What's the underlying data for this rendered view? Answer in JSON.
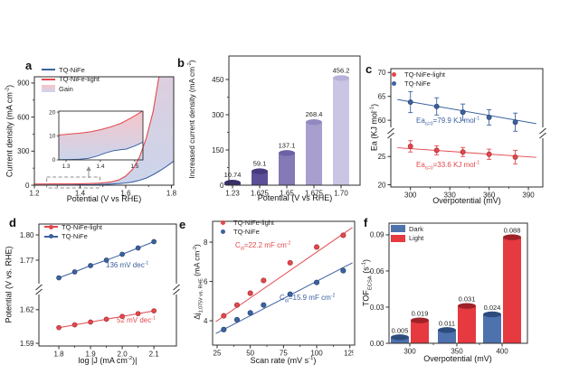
{
  "colors": {
    "red": "#e1484d",
    "red_dark": "#a92f34",
    "blue": "#3c62a0",
    "blue_dark": "#27406e",
    "axis": "#2e2e2e",
    "text": "#1f1f1f",
    "gray": "#8f8f8f",
    "gain_top": "rgba(240,140,146,0.50)",
    "gain_bottom": "rgba(148,166,214,0.48)",
    "bar_purples": [
      {
        "body": "#4c3f86",
        "top": "#392f6a"
      },
      {
        "body": "#5d4f97",
        "top": "#483a7e"
      },
      {
        "body": "#8579b6",
        "top": "#6d61a6"
      },
      {
        "body": "#a89fce",
        "top": "#9289bf"
      },
      {
        "body": "#cbc5e4",
        "top": "#b7b0d8"
      }
    ],
    "dark_bar": {
      "body": "#4d72ae",
      "top": "#2d4c7d"
    },
    "light_bar": {
      "body": "#e73940",
      "top": "#9e2127"
    }
  },
  "chart_data": [
    {
      "id": "a",
      "type": "line",
      "letter": "a",
      "xlabel_html": "Potential (V vs RHE)",
      "ylabel_html": "Current density (mA cm<sup>-2</sup>)",
      "xlim": [
        1.2,
        1.81
      ],
      "ylim": [
        0,
        955
      ],
      "xticks": [
        "1.2",
        "1.4",
        "1.6",
        "1.8"
      ],
      "xminor": [
        1.3,
        1.5,
        1.7
      ],
      "yticks": [
        "0",
        "300",
        "600",
        "900"
      ],
      "yminor": [
        150,
        450,
        750
      ],
      "legend": [
        {
          "label": "TQ-NiFe",
          "color": "blue",
          "swatch": "line"
        },
        {
          "label": "TQ-NiFe-light",
          "color": "red",
          "swatch": "line"
        },
        {
          "label": "Gain",
          "color": "gain",
          "swatch": "gradient"
        }
      ],
      "series": [
        {
          "name": "TQ-NiFe-light",
          "color": "red",
          "points": [
            [
              1.2,
              10
            ],
            [
              1.24,
              10.4
            ],
            [
              1.28,
              10.8
            ],
            [
              1.32,
              11.3
            ],
            [
              1.36,
              12
            ],
            [
              1.4,
              13
            ],
            [
              1.44,
              14.6
            ],
            [
              1.48,
              17.5
            ],
            [
              1.51,
              22
            ],
            [
              1.54,
              30
            ],
            [
              1.57,
              46
            ],
            [
              1.6,
              80
            ],
            [
              1.63,
              140
            ],
            [
              1.66,
              245
            ],
            [
              1.69,
              415
            ],
            [
              1.72,
              650
            ],
            [
              1.745,
              950
            ],
            [
              1.77,
              1400
            ],
            [
              1.81,
              2400
            ]
          ]
        },
        {
          "name": "TQ-NiFe",
          "color": "blue",
          "points": [
            [
              1.2,
              0.8
            ],
            [
              1.26,
              0.9
            ],
            [
              1.32,
              1.2
            ],
            [
              1.36,
              1.8
            ],
            [
              1.4,
              3
            ],
            [
              1.44,
              4.3
            ],
            [
              1.48,
              5.8
            ],
            [
              1.51,
              7.5
            ],
            [
              1.54,
              10
            ],
            [
              1.57,
              14
            ],
            [
              1.6,
              20
            ],
            [
              1.63,
              29
            ],
            [
              1.66,
              43
            ],
            [
              1.69,
              63
            ],
            [
              1.72,
              92
            ],
            [
              1.75,
              128
            ],
            [
              1.78,
              168
            ],
            [
              1.81,
              212
            ]
          ]
        }
      ],
      "zoom_box": [
        1.254,
        1.487
      ],
      "inset": {
        "xlim": [
          1.279,
          1.524
        ],
        "ylim": [
          0,
          20.4
        ],
        "xticks": [
          "1.3",
          "1.4",
          "1.5"
        ],
        "yticks": [
          "0",
          "10",
          "20"
        ],
        "red": [
          [
            1.279,
            10.4
          ],
          [
            1.31,
            10.8
          ],
          [
            1.34,
            11.2
          ],
          [
            1.37,
            11.7
          ],
          [
            1.4,
            12.6
          ],
          [
            1.43,
            13.8
          ],
          [
            1.46,
            15.3
          ],
          [
            1.49,
            17.6
          ],
          [
            1.51,
            19.3
          ],
          [
            1.524,
            20.6
          ]
        ],
        "blue": [
          [
            1.279,
            0.12
          ],
          [
            1.31,
            0.15
          ],
          [
            1.34,
            0.25
          ],
          [
            1.365,
            0.6
          ],
          [
            1.39,
            1.6
          ],
          [
            1.415,
            2.9
          ],
          [
            1.44,
            3.9
          ],
          [
            1.46,
            4.3
          ],
          [
            1.475,
            4.5
          ],
          [
            1.5,
            5.8
          ],
          [
            1.524,
            7.4
          ]
        ]
      }
    },
    {
      "id": "b",
      "type": "bar",
      "letter": "b",
      "xlabel_html": "Potential (V vs RHE)",
      "ylabel_html": "Increased current density (mA cm<sup>-2</sup>)",
      "categories": [
        "1.23",
        "1.625",
        "1.65",
        "1.675",
        "1.70"
      ],
      "values": [
        10.74,
        59.1,
        137.1,
        268.4,
        456.2
      ],
      "value_labels": [
        "10.74",
        "59.1",
        "137.1",
        "268.4",
        "456.2"
      ],
      "ylim": [
        0,
        550
      ],
      "yticks": [
        "0",
        "150",
        "300",
        "450"
      ],
      "yminor": [
        75,
        225,
        375
      ]
    },
    {
      "id": "c",
      "type": "scatter",
      "letter": "c",
      "xlabel_html": "Overpotential (mV)",
      "ylabel_html": "Ea (KJ mol<sup>-1</sup>)",
      "xlim": [
        285,
        401
      ],
      "xticks": [
        "300",
        "330",
        "360",
        "390"
      ],
      "xminor": [
        315,
        345,
        375
      ],
      "broken_y": {
        "lower": {
          "lim": [
            19.6,
            28.4
          ],
          "ticks": [
            "20",
            "25"
          ]
        },
        "upper": {
          "lim": [
            58.7,
            70.8
          ],
          "ticks": [
            "60",
            "65",
            "70"
          ]
        }
      },
      "legend": [
        {
          "label": "TQ-NiFe-light",
          "color": "red",
          "swatch": "dot"
        },
        {
          "label": "TQ-NiFe",
          "color": "blue",
          "swatch": "dot"
        }
      ],
      "series": [
        {
          "name": "TQ-NiFe-light",
          "color": "red",
          "seg": "lower",
          "x": [
            300,
            320,
            340,
            360,
            380
          ],
          "y": [
            26.8,
            26.1,
            25.8,
            25.4,
            24.9
          ],
          "err": [
            1.0,
            0.8,
            0.8,
            0.9,
            1.2
          ],
          "fit": [
            [
              290,
              26.55
            ],
            [
              396,
              24.85
            ]
          ]
        },
        {
          "name": "TQ-NiFe",
          "color": "blue",
          "seg": "upper",
          "x": [
            300,
            320,
            340,
            360,
            380
          ],
          "y": [
            63.8,
            62.9,
            61.7,
            60.6,
            59.6
          ],
          "err": [
            2.2,
            1.8,
            1.7,
            1.6,
            1.9
          ],
          "fit": [
            [
              290,
              64.35
            ],
            [
              396,
              59.3
            ]
          ]
        }
      ],
      "annotations": [
        {
          "html": "Ea<sub>η=0</sub>=79.9 KJ mol<sup>-1</sup>",
          "color": "blue"
        },
        {
          "html": "Ea<sub>η=0</sub>=33.6 KJ mol<sup>-1</sup>",
          "color": "red"
        }
      ]
    },
    {
      "id": "d",
      "type": "scatter",
      "letter": "d",
      "xlabel_html": "log |J (mA cm<sup>-2</sup>)|",
      "ylabel_html": "Potential (V vs. RHE)",
      "xlim": [
        1.737,
        2.171
      ],
      "xticks": [
        "1.8",
        "1.9",
        "2.0",
        "2.1"
      ],
      "xminor": [
        1.85,
        1.95,
        2.05
      ],
      "broken_y": {
        "lower": {
          "lim": [
            1.5876,
            1.636
          ],
          "ticks": [
            "1.59",
            "1.62"
          ]
        },
        "upper": {
          "lim": [
            1.741,
            1.8129
          ],
          "ticks": [
            "1.77",
            "1.80"
          ]
        }
      },
      "legend": [
        {
          "label": "TQ-NiFe-light",
          "color": "red",
          "swatch": "dotline"
        },
        {
          "label": "TQ-NiFe",
          "color": "blue",
          "swatch": "dotline"
        }
      ],
      "series": [
        {
          "name": "TQ-NiFe-light",
          "color": "red",
          "seg": "lower",
          "line": true,
          "x": [
            1.8,
            1.85,
            1.9,
            1.95,
            2.0,
            2.05,
            2.1
          ],
          "y": [
            1.604,
            1.6065,
            1.609,
            1.6115,
            1.614,
            1.6165,
            1.619
          ]
        },
        {
          "name": "TQ-NiFe",
          "color": "blue",
          "seg": "upper",
          "line": true,
          "x": [
            1.8,
            1.85,
            1.9,
            1.95,
            2.0,
            2.05,
            2.1
          ],
          "y": [
            1.749,
            1.756,
            1.7635,
            1.77,
            1.777,
            1.7845,
            1.792
          ]
        }
      ],
      "annotations": [
        {
          "html": "136 mV dec<sup>-1</sup>",
          "color": "blue"
        },
        {
          "html": "52 mV dec<sup>-1</sup>",
          "color": "red"
        }
      ]
    },
    {
      "id": "e",
      "type": "scatter",
      "letter": "e",
      "xlabel_html": "Scan rate (mV s<sup>-1</sup>)",
      "ylabel_html": "Δj<sub>1.075V vs. RHE</sub> (mA cm<sup>-2</sup>)",
      "xlim": [
        21.6,
        128.6
      ],
      "xticks": [
        "25",
        "50",
        "75",
        "100",
        "125"
      ],
      "xminor": [
        37.5,
        62.5,
        87.5,
        112.5
      ],
      "ylim": [
        2.76,
        9.06
      ],
      "yticks": [
        "4",
        "6",
        "8"
      ],
      "legend": [
        {
          "label": "TQ-NiFe-light",
          "color": "red",
          "swatch": "dot"
        },
        {
          "label": "TQ-NiFe",
          "color": "blue",
          "swatch": "dot"
        }
      ],
      "series": [
        {
          "name": "TQ-NiFe-light",
          "color": "red",
          "x": [
            30,
            40,
            50,
            60,
            80,
            100,
            120
          ],
          "y": [
            4.25,
            4.8,
            5.4,
            6.05,
            6.95,
            7.75,
            8.35
          ],
          "fit": [
            [
              24,
              3.95
            ],
            [
              127,
              8.75
            ]
          ]
        },
        {
          "name": "TQ-NiFe",
          "color": "blue",
          "x": [
            30,
            40,
            50,
            60,
            80,
            100,
            120
          ],
          "y": [
            3.55,
            4.05,
            4.4,
            4.8,
            5.35,
            5.95,
            6.55
          ],
          "fit": [
            [
              24,
              3.35
            ],
            [
              127,
              6.95
            ]
          ]
        }
      ],
      "annotations": [
        {
          "html": "C<sub>dl</sub>=22.2 mF cm<sup>-2</sup>",
          "color": "red"
        },
        {
          "html": "C<sub>dl</sub>=15.9 mF cm<sup>-2</sup>",
          "color": "blue"
        }
      ]
    },
    {
      "id": "f",
      "type": "bar",
      "letter": "f",
      "xlabel_html": "Overpotential (mV)",
      "ylabel_html": "TOF<sub>ECSA</sub> (s<sup>-1</sup>)",
      "categories": [
        "300",
        "350",
        "400"
      ],
      "ylim": [
        0,
        0.0997
      ],
      "yticks": [
        "0.00",
        "0.03",
        "0.06",
        "0.09"
      ],
      "legend": [
        {
          "label": "Dark",
          "color": "dark_bar",
          "swatch": "rect"
        },
        {
          "label": "Light",
          "color": "light_bar",
          "swatch": "rect"
        }
      ],
      "series": [
        {
          "name": "Dark",
          "values": [
            0.005,
            0.011,
            0.024
          ],
          "labels": [
            "0.005",
            "0.011",
            "0.024"
          ]
        },
        {
          "name": "Light",
          "values": [
            0.019,
            0.031,
            0.088
          ],
          "labels": [
            "0.019",
            "0.031",
            "0.088"
          ]
        }
      ]
    }
  ]
}
